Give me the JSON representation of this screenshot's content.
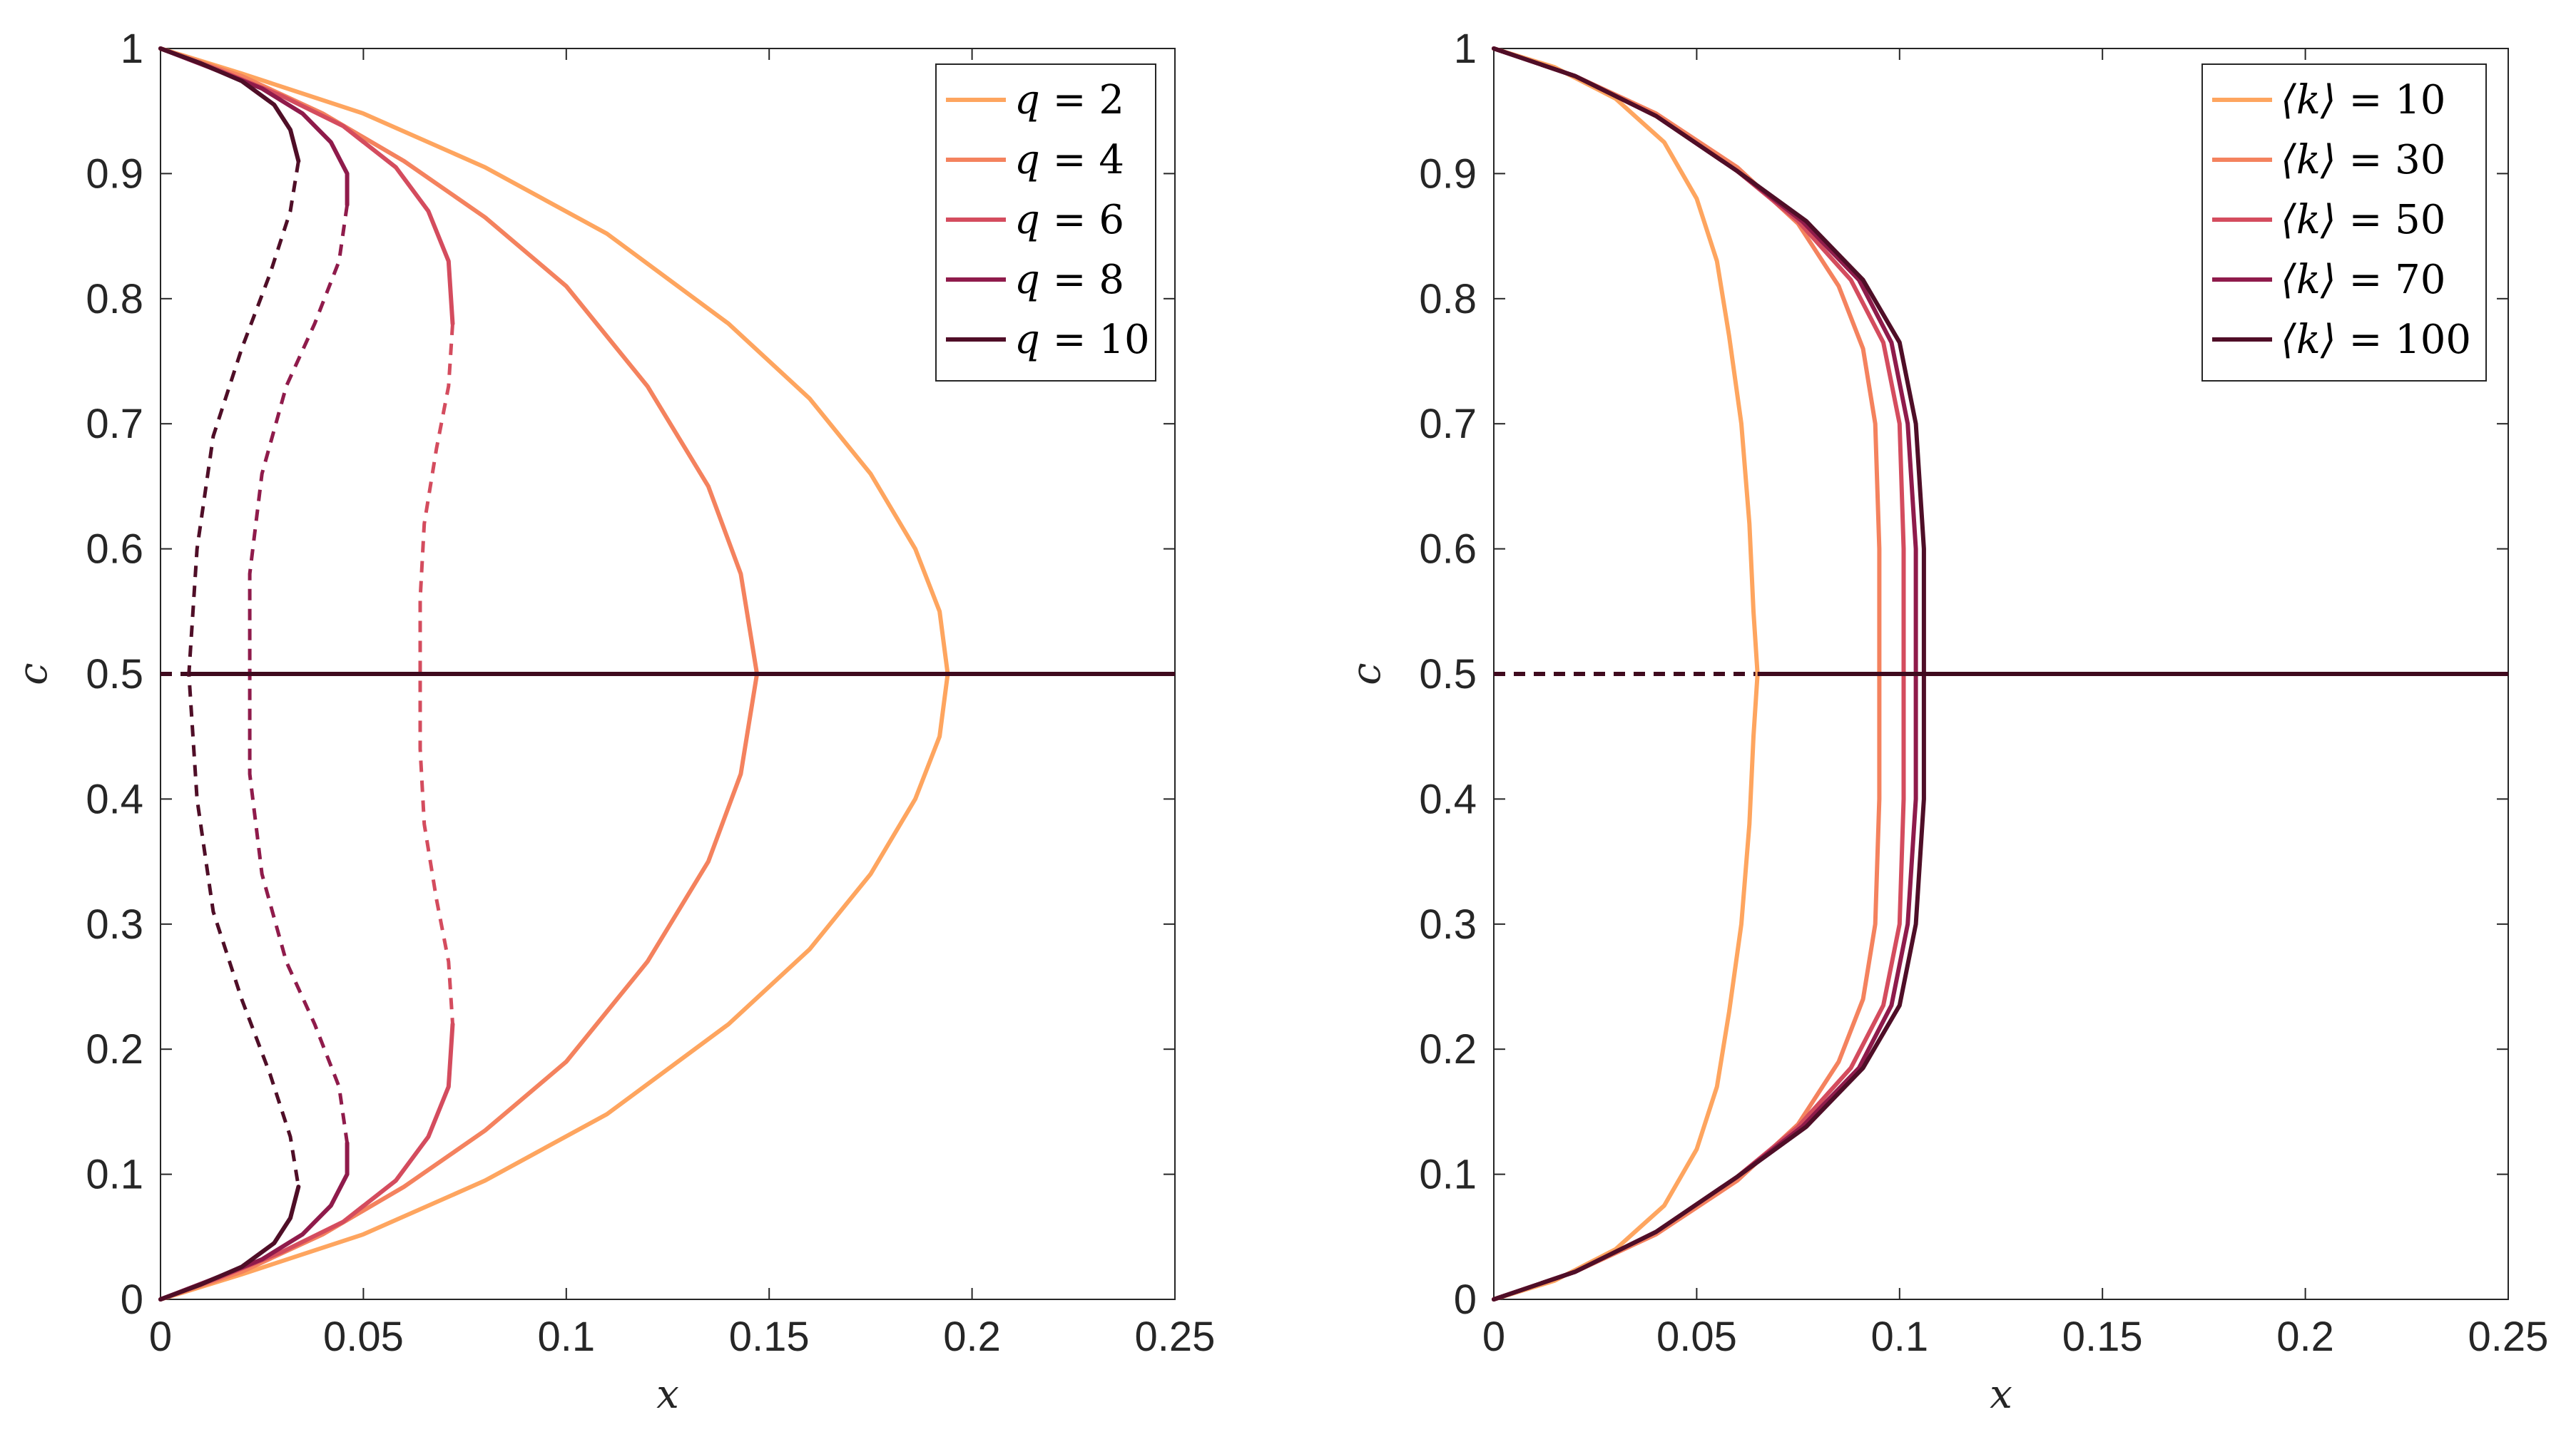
{
  "chart_data": [
    {
      "type": "line",
      "xlabel": "x",
      "ylabel": "c",
      "xlim": [
        0,
        0.25
      ],
      "ylim": [
        0,
        1
      ],
      "xticks": [
        "0",
        "0.05",
        "0.1",
        "0.15",
        "0.2",
        "0.25"
      ],
      "yticks": [
        "0",
        "0.1",
        "0.2",
        "0.3",
        "0.4",
        "0.5",
        "0.6",
        "0.7",
        "0.8",
        "0.9",
        "1"
      ],
      "legend_position": "top-right",
      "grid": false,
      "series": [
        {
          "name": "q = 2",
          "legend_var": "q",
          "legend_rest": " = 2",
          "color": "#fea55f",
          "solid": [
            [
              0,
              1
            ],
            [
              0.02,
              0.98
            ],
            [
              0.05,
              0.948
            ],
            [
              0.08,
              0.905
            ],
            [
              0.11,
              0.852
            ],
            [
              0.14,
              0.78
            ],
            [
              0.16,
              0.72
            ],
            [
              0.175,
              0.66
            ],
            [
              0.186,
              0.6
            ],
            [
              0.192,
              0.55
            ],
            [
              0.194,
              0.5
            ],
            [
              0.192,
              0.45
            ],
            [
              0.186,
              0.4
            ],
            [
              0.175,
              0.34
            ],
            [
              0.16,
              0.28
            ],
            [
              0.14,
              0.22
            ],
            [
              0.11,
              0.148
            ],
            [
              0.08,
              0.095
            ],
            [
              0.05,
              0.052
            ],
            [
              0.02,
              0.02
            ],
            [
              0,
              0
            ]
          ],
          "dashed": []
        },
        {
          "name": "q = 4",
          "legend_var": "q",
          "legend_rest": " = 4",
          "color": "#f4825e",
          "solid": [
            [
              0,
              1
            ],
            [
              0.02,
              0.978
            ],
            [
              0.04,
              0.948
            ],
            [
              0.06,
              0.91
            ],
            [
              0.08,
              0.865
            ],
            [
              0.1,
              0.81
            ],
            [
              0.12,
              0.73
            ],
            [
              0.135,
              0.65
            ],
            [
              0.143,
              0.58
            ],
            [
              0.147,
              0.5
            ],
            [
              0.143,
              0.42
            ],
            [
              0.135,
              0.35
            ],
            [
              0.12,
              0.27
            ],
            [
              0.1,
              0.19
            ],
            [
              0.08,
              0.135
            ],
            [
              0.06,
              0.09
            ],
            [
              0.04,
              0.052
            ],
            [
              0.02,
              0.022
            ],
            [
              0,
              0
            ]
          ],
          "dashed": []
        },
        {
          "name": "q = 6",
          "legend_var": "q",
          "legend_rest": " = 6",
          "color": "#d44c5e",
          "solid": [
            [
              0,
              1
            ],
            [
              0.015,
              0.982
            ],
            [
              0.03,
              0.962
            ],
            [
              0.045,
              0.938
            ],
            [
              0.058,
              0.905
            ],
            [
              0.066,
              0.87
            ],
            [
              0.071,
              0.83
            ],
            [
              0.072,
              0.78
            ],
            [
              null,
              null
            ],
            [
              0.072,
              0.22
            ],
            [
              0.071,
              0.17
            ],
            [
              0.066,
              0.13
            ],
            [
              0.058,
              0.095
            ],
            [
              0.045,
              0.062
            ],
            [
              0.03,
              0.038
            ],
            [
              0.015,
              0.018
            ],
            [
              0,
              0
            ]
          ],
          "dashed": [
            [
              0.072,
              0.78
            ],
            [
              0.071,
              0.73
            ],
            [
              0.068,
              0.68
            ],
            [
              0.065,
              0.62
            ],
            [
              0.064,
              0.56
            ],
            [
              0.064,
              0.5
            ],
            [
              0.064,
              0.44
            ],
            [
              0.065,
              0.38
            ],
            [
              0.068,
              0.32
            ],
            [
              0.071,
              0.27
            ],
            [
              0.072,
              0.22
            ]
          ]
        },
        {
          "name": "q = 8",
          "legend_var": "q",
          "legend_rest": " = 8",
          "color": "#8f1b4b",
          "solid": [
            [
              0,
              1
            ],
            [
              0.012,
              0.985
            ],
            [
              0.025,
              0.968
            ],
            [
              0.035,
              0.948
            ],
            [
              0.042,
              0.925
            ],
            [
              0.046,
              0.9
            ],
            [
              0.046,
              0.875
            ],
            [
              null,
              null
            ],
            [
              0.046,
              0.125
            ],
            [
              0.046,
              0.1
            ],
            [
              0.042,
              0.075
            ],
            [
              0.035,
              0.052
            ],
            [
              0.025,
              0.032
            ],
            [
              0.012,
              0.015
            ],
            [
              0,
              0
            ]
          ],
          "dashed": [
            [
              0.046,
              0.875
            ],
            [
              0.044,
              0.83
            ],
            [
              0.038,
              0.78
            ],
            [
              0.031,
              0.73
            ],
            [
              0.025,
              0.66
            ],
            [
              0.022,
              0.58
            ],
            [
              0.022,
              0.5
            ],
            [
              0.022,
              0.42
            ],
            [
              0.025,
              0.34
            ],
            [
              0.031,
              0.27
            ],
            [
              0.038,
              0.22
            ],
            [
              0.044,
              0.17
            ],
            [
              0.046,
              0.125
            ]
          ]
        },
        {
          "name": "q = 10",
          "legend_var": "q",
          "legend_rest": " = 10",
          "color": "#4f0e27",
          "solid": [
            [
              0,
              1
            ],
            [
              0.01,
              0.988
            ],
            [
              0.02,
              0.974
            ],
            [
              0.028,
              0.955
            ],
            [
              0.032,
              0.935
            ],
            [
              0.034,
              0.91
            ],
            [
              null,
              null
            ],
            [
              0.034,
              0.09
            ],
            [
              0.032,
              0.065
            ],
            [
              0.028,
              0.045
            ],
            [
              0.02,
              0.026
            ],
            [
              0.01,
              0.012
            ],
            [
              0,
              0
            ]
          ],
          "dashed": [
            [
              0.034,
              0.91
            ],
            [
              0.032,
              0.87
            ],
            [
              0.027,
              0.82
            ],
            [
              0.02,
              0.76
            ],
            [
              0.013,
              0.69
            ],
            [
              0.009,
              0.6
            ],
            [
              0.007,
              0.5
            ],
            [
              0.009,
              0.4
            ],
            [
              0.013,
              0.31
            ],
            [
              0.02,
              0.24
            ],
            [
              0.027,
              0.18
            ],
            [
              0.032,
              0.13
            ],
            [
              0.034,
              0.09
            ]
          ]
        }
      ],
      "reference_line": {
        "solid": [
          [
            0.007,
            0.5
          ],
          [
            0.25,
            0.5
          ]
        ],
        "dashed": [
          [
            0,
            0.5
          ],
          [
            0.007,
            0.5
          ]
        ],
        "color": "#3f0a1e"
      }
    },
    {
      "type": "line",
      "xlabel": "x",
      "ylabel": "c",
      "xlim": [
        0,
        0.25
      ],
      "ylim": [
        0,
        1
      ],
      "xticks": [
        "0",
        "0.05",
        "0.1",
        "0.15",
        "0.2",
        "0.25"
      ],
      "yticks": [
        "0",
        "0.1",
        "0.2",
        "0.3",
        "0.4",
        "0.5",
        "0.6",
        "0.7",
        "0.8",
        "0.9",
        "1"
      ],
      "legend_position": "top-right",
      "grid": false,
      "series": [
        {
          "name": "⟨k⟩ = 10",
          "legend_var": "⟨k⟩",
          "legend_rest": " = 10",
          "color": "#fea55f",
          "solid": [
            [
              0,
              1
            ],
            [
              0.015,
              0.985
            ],
            [
              0.03,
              0.96
            ],
            [
              0.042,
              0.925
            ],
            [
              0.05,
              0.88
            ],
            [
              0.055,
              0.83
            ],
            [
              0.058,
              0.77
            ],
            [
              0.061,
              0.7
            ],
            [
              0.063,
              0.62
            ],
            [
              0.064,
              0.55
            ],
            [
              0.065,
              0.5
            ],
            [
              0.064,
              0.45
            ],
            [
              0.063,
              0.38
            ],
            [
              0.061,
              0.3
            ],
            [
              0.058,
              0.23
            ],
            [
              0.055,
              0.17
            ],
            [
              0.05,
              0.12
            ],
            [
              0.042,
              0.075
            ],
            [
              0.03,
              0.04
            ],
            [
              0.015,
              0.015
            ],
            [
              0,
              0
            ]
          ],
          "dashed": []
        },
        {
          "name": "⟨k⟩ = 30",
          "legend_var": "⟨k⟩",
          "legend_rest": " = 30",
          "color": "#f4825e",
          "solid": [
            [
              0,
              1
            ],
            [
              0.02,
              0.978
            ],
            [
              0.04,
              0.948
            ],
            [
              0.06,
              0.905
            ],
            [
              0.075,
              0.86
            ],
            [
              0.085,
              0.81
            ],
            [
              0.091,
              0.76
            ],
            [
              0.094,
              0.7
            ],
            [
              0.095,
              0.6
            ],
            [
              0.095,
              0.5
            ],
            [
              0.095,
              0.4
            ],
            [
              0.094,
              0.3
            ],
            [
              0.091,
              0.24
            ],
            [
              0.085,
              0.19
            ],
            [
              0.075,
              0.14
            ],
            [
              0.06,
              0.095
            ],
            [
              0.04,
              0.052
            ],
            [
              0.02,
              0.022
            ],
            [
              0,
              0
            ]
          ],
          "dashed": []
        },
        {
          "name": "⟨k⟩ = 50",
          "legend_var": "⟨k⟩",
          "legend_rest": " = 50",
          "color": "#d44c5e",
          "solid": [
            [
              0,
              1
            ],
            [
              0.02,
              0.978
            ],
            [
              0.04,
              0.946
            ],
            [
              0.06,
              0.902
            ],
            [
              0.075,
              0.862
            ],
            [
              0.088,
              0.815
            ],
            [
              0.096,
              0.765
            ],
            [
              0.1,
              0.7
            ],
            [
              0.101,
              0.6
            ],
            [
              0.101,
              0.5
            ],
            [
              0.101,
              0.4
            ],
            [
              0.1,
              0.3
            ],
            [
              0.096,
              0.235
            ],
            [
              0.088,
              0.185
            ],
            [
              0.075,
              0.138
            ],
            [
              0.06,
              0.098
            ],
            [
              0.04,
              0.054
            ],
            [
              0.02,
              0.022
            ],
            [
              0,
              0
            ]
          ],
          "dashed": []
        },
        {
          "name": "⟨k⟩ = 70",
          "legend_var": "⟨k⟩",
          "legend_rest": " = 70",
          "color": "#8f1b4b",
          "solid": [
            [
              0,
              1
            ],
            [
              0.02,
              0.978
            ],
            [
              0.04,
              0.946
            ],
            [
              0.06,
              0.902
            ],
            [
              0.076,
              0.862
            ],
            [
              0.09,
              0.815
            ],
            [
              0.098,
              0.765
            ],
            [
              0.102,
              0.7
            ],
            [
              0.104,
              0.6
            ],
            [
              0.104,
              0.5
            ],
            [
              0.104,
              0.4
            ],
            [
              0.102,
              0.3
            ],
            [
              0.098,
              0.235
            ],
            [
              0.09,
              0.185
            ],
            [
              0.076,
              0.138
            ],
            [
              0.06,
              0.098
            ],
            [
              0.04,
              0.054
            ],
            [
              0.02,
              0.022
            ],
            [
              0,
              0
            ]
          ],
          "dashed": []
        },
        {
          "name": "⟨k⟩ = 100",
          "legend_var": "⟨k⟩",
          "legend_rest": " = 100",
          "color": "#4f0e27",
          "solid": [
            [
              0,
              1
            ],
            [
              0.02,
              0.978
            ],
            [
              0.04,
              0.946
            ],
            [
              0.06,
              0.902
            ],
            [
              0.077,
              0.862
            ],
            [
              0.091,
              0.815
            ],
            [
              0.1,
              0.765
            ],
            [
              0.104,
              0.7
            ],
            [
              0.106,
              0.6
            ],
            [
              0.106,
              0.5
            ],
            [
              0.106,
              0.4
            ],
            [
              0.104,
              0.3
            ],
            [
              0.1,
              0.235
            ],
            [
              0.091,
              0.185
            ],
            [
              0.077,
              0.138
            ],
            [
              0.06,
              0.098
            ],
            [
              0.04,
              0.054
            ],
            [
              0.02,
              0.022
            ],
            [
              0,
              0
            ]
          ],
          "dashed": []
        }
      ],
      "reference_line": {
        "solid": [
          [
            0.065,
            0.5
          ],
          [
            0.25,
            0.5
          ]
        ],
        "dashed": [
          [
            0,
            0.5
          ],
          [
            0.065,
            0.5
          ]
        ],
        "color": "#3f0a1e"
      }
    }
  ]
}
